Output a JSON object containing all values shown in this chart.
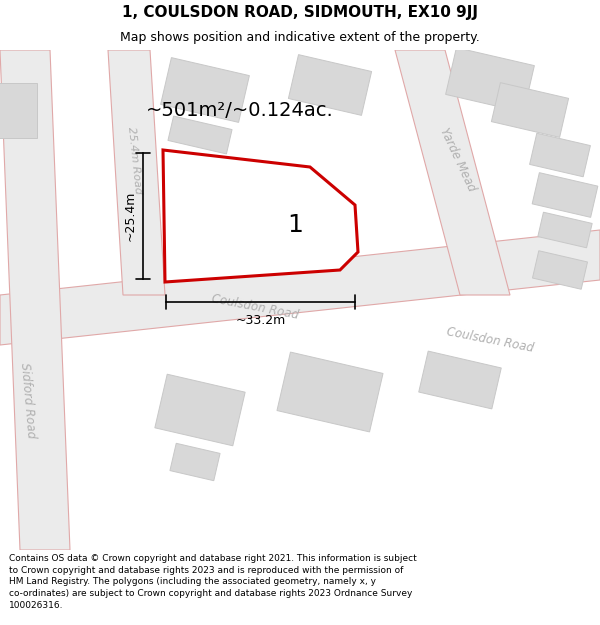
{
  "title_line1": "1, COULSDON ROAD, SIDMOUTH, EX10 9JJ",
  "title_line2": "Map shows position and indicative extent of the property.",
  "footer_text": "Contains OS data © Crown copyright and database right 2021. This information is subject to Crown copyright and database rights 2023 and is reproduced with the permission of HM Land Registry. The polygons (including the associated geometry, namely x, y co-ordinates) are subject to Crown copyright and database rights 2023 Ordnance Survey 100026316.",
  "area_label": "~501m²/~0.124ac.",
  "plot_number": "1",
  "dim_width": "~33.2m",
  "dim_height": "~25.4m",
  "bg_color": "#ffffff",
  "map_bg": "#ffffff",
  "road_fill": "#ebebeb",
  "road_edge": "#e0a8a8",
  "plot_outline_color": "#cc0000",
  "building_fill": "#d8d8d8",
  "building_edge": "#c8c8c8",
  "road_label_color": "#b0b0b0",
  "dim_color": "#000000",
  "title_fontsize": 11,
  "subtitle_fontsize": 9,
  "footer_fontsize": 6.5
}
